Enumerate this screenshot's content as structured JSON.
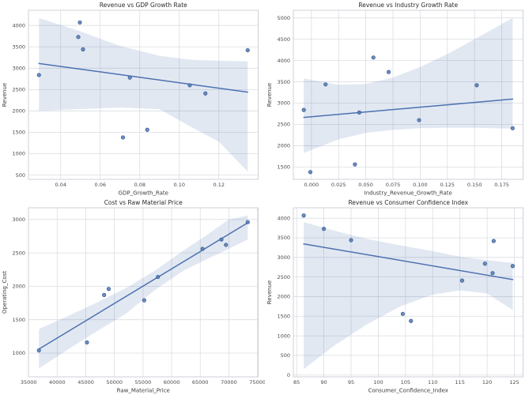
{
  "figure": {
    "background": "#ffffff"
  },
  "style": {
    "accent_blue": "#4c72b0",
    "point_fill": "#557ab2",
    "point_edge": "#3d5f9b",
    "band_fill": "#4c72b0",
    "band_opacity": 0.16,
    "grid_color": "#dadde2",
    "spine_color": "#cdd1d8",
    "title_color": "#2b2b2b",
    "label_color": "#3c3c3c",
    "tick_color": "#4a4a4a"
  },
  "chart_data": [
    {
      "type": "scatter",
      "title": "Revenue vs GDP Growth Rate",
      "xlabel": "GDP_Growth_Rate",
      "ylabel": "Revenue",
      "xlim": [
        0.0237,
        0.1399
      ],
      "ylim": [
        400,
        4355
      ],
      "xticks": [
        0.04,
        0.06,
        0.08,
        0.1,
        0.12
      ],
      "xtick_labels": [
        "0.04",
        "0.06",
        "0.08",
        "0.10",
        "0.12"
      ],
      "yticks": [
        500,
        1000,
        1500,
        2000,
        2500,
        3000,
        3500,
        4000
      ],
      "ytick_labels": [
        "500",
        "1000",
        "1500",
        "2000",
        "2500",
        "3000",
        "3500",
        "4000"
      ],
      "grid": true,
      "legend": "none",
      "points": [
        [
          0.029,
          2840
        ],
        [
          0.0497,
          4070
        ],
        [
          0.0489,
          3730
        ],
        [
          0.0513,
          3440
        ],
        [
          0.075,
          2780
        ],
        [
          0.0715,
          1380
        ],
        [
          0.0838,
          1560
        ],
        [
          0.1053,
          2600
        ],
        [
          0.1132,
          2410
        ],
        [
          0.1346,
          3420
        ]
      ],
      "regression_line": [
        [
          0.029,
          3110
        ],
        [
          0.1346,
          2440
        ]
      ],
      "ci_band": [
        [
          0.029,
          2000,
          4175
        ],
        [
          0.05,
          2045,
          3860
        ],
        [
          0.07,
          2080,
          3520
        ],
        [
          0.09,
          2040,
          3290
        ],
        [
          0.105,
          1650,
          3200
        ],
        [
          0.12,
          1280,
          3175
        ],
        [
          0.1346,
          580,
          3160
        ]
      ]
    },
    {
      "type": "scatter",
      "title": "Revenue vs Industry Growth Rate",
      "xlabel": "Industry_Revenue_Growth_Rate",
      "ylabel": "Revenue",
      "xlim": [
        -0.0166,
        0.1946
      ],
      "ylim": [
        1210,
        5180
      ],
      "xticks": [
        0.0,
        0.025,
        0.05,
        0.075,
        0.1,
        0.125,
        0.15,
        0.175
      ],
      "xtick_labels": [
        "0.000",
        "0.025",
        "0.050",
        "0.075",
        "0.100",
        "0.125",
        "0.150",
        "0.175"
      ],
      "yticks": [
        1500,
        2000,
        2500,
        3000,
        3500,
        4000,
        4500,
        5000
      ],
      "ytick_labels": [
        "1500",
        "2000",
        "2500",
        "3000",
        "3500",
        "4000",
        "4500",
        "5000"
      ],
      "grid": true,
      "legend": "none",
      "points": [
        [
          -0.007,
          2840
        ],
        [
          -0.001,
          1380
        ],
        [
          0.013,
          3440
        ],
        [
          0.04,
          1560
        ],
        [
          0.044,
          2780
        ],
        [
          0.057,
          4070
        ],
        [
          0.071,
          3730
        ],
        [
          0.099,
          2600
        ],
        [
          0.152,
          3420
        ],
        [
          0.185,
          2410
        ]
      ],
      "regression_line": [
        [
          -0.007,
          2665
        ],
        [
          0.185,
          3095
        ]
      ],
      "ci_band": [
        [
          -0.007,
          1830,
          3580
        ],
        [
          0.025,
          2150,
          3430
        ],
        [
          0.05,
          2300,
          3450
        ],
        [
          0.075,
          2370,
          3600
        ],
        [
          0.1,
          2410,
          3850
        ],
        [
          0.125,
          2420,
          4150
        ],
        [
          0.15,
          2420,
          4500
        ],
        [
          0.185,
          2400,
          5000
        ]
      ]
    },
    {
      "type": "scatter",
      "title": "Cost vs Raw Material Price",
      "xlabel": "Raw_Material_Price",
      "ylabel": "Operating_Cost",
      "xlim": [
        34975,
        75125
      ],
      "ylim": [
        645,
        3175
      ],
      "xticks": [
        35000,
        40000,
        45000,
        50000,
        55000,
        60000,
        65000,
        70000,
        75000
      ],
      "xtick_labels": [
        "35000",
        "40000",
        "45000",
        "50000",
        "55000",
        "60000",
        "65000",
        "70000",
        "75000"
      ],
      "yticks": [
        1000,
        1500,
        2000,
        2500,
        3000
      ],
      "ytick_labels": [
        "1000",
        "1500",
        "2000",
        "2500",
        "3000"
      ],
      "grid": true,
      "legend": "none",
      "points": [
        [
          36800,
          1040
        ],
        [
          45200,
          1160
        ],
        [
          48200,
          1870
        ],
        [
          49000,
          1960
        ],
        [
          55200,
          1790
        ],
        [
          57600,
          2140
        ],
        [
          65400,
          2560
        ],
        [
          68700,
          2700
        ],
        [
          69500,
          2620
        ],
        [
          73300,
          2960
        ]
      ],
      "regression_line": [
        [
          36800,
          1060
        ],
        [
          73300,
          2950
        ]
      ],
      "ci_band": [
        [
          36800,
          770,
          1360
        ],
        [
          42000,
          1060,
          1560
        ],
        [
          47000,
          1330,
          1760
        ],
        [
          52000,
          1590,
          1970
        ],
        [
          57000,
          1940,
          2230
        ],
        [
          62000,
          2230,
          2530
        ],
        [
          66000,
          2400,
          2760
        ],
        [
          70000,
          2560,
          3000
        ],
        [
          73300,
          2700,
          3060
        ]
      ]
    },
    {
      "type": "scatter",
      "title": "Revenue vs Consumer Confidence Index",
      "xlabel": "Consumer_Confidence_Index",
      "ylabel": "Revenue",
      "xlim": [
        84.4,
        126.6
      ],
      "ylim": [
        -46,
        4266
      ],
      "xticks": [
        85,
        90,
        95,
        100,
        105,
        110,
        115,
        120,
        125
      ],
      "xtick_labels": [
        "85",
        "90",
        "95",
        "100",
        "105",
        "110",
        "115",
        "120",
        "125"
      ],
      "yticks": [
        0,
        500,
        1000,
        1500,
        2000,
        2500,
        3000,
        3500,
        4000
      ],
      "ytick_labels": [
        "0",
        "500",
        "1000",
        "1500",
        "2000",
        "2500",
        "3000",
        "3500",
        "4000"
      ],
      "grid": true,
      "legend": "none",
      "points": [
        [
          86.3,
          4070
        ],
        [
          90.0,
          3730
        ],
        [
          95.0,
          3440
        ],
        [
          104.5,
          1560
        ],
        [
          106.0,
          1380
        ],
        [
          115.4,
          2410
        ],
        [
          119.6,
          2840
        ],
        [
          121.2,
          3420
        ],
        [
          121.0,
          2600
        ],
        [
          124.7,
          2780
        ]
      ],
      "regression_line": [
        [
          86.3,
          3345
        ],
        [
          124.7,
          2435
        ]
      ],
      "ci_band": [
        [
          86.3,
          150,
          3900
        ],
        [
          92,
          760,
          3680
        ],
        [
          98,
          1300,
          3470
        ],
        [
          104,
          1750,
          3310
        ],
        [
          110,
          2050,
          3160
        ],
        [
          115,
          2160,
          3020
        ],
        [
          120,
          2080,
          2930
        ],
        [
          124.7,
          1660,
          2860
        ]
      ]
    }
  ]
}
